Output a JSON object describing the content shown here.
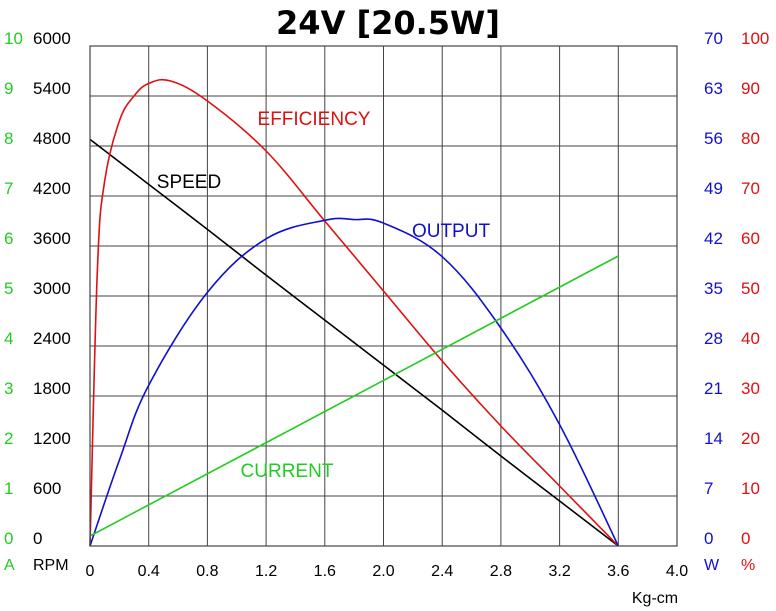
{
  "chart_data": {
    "type": "line",
    "title": "24V [20.5W]",
    "xlabel": "Kg-cm",
    "xlim": [
      0,
      4.0
    ],
    "x_ticks": [
      "0",
      "0.4",
      "0.8",
      "1.2",
      "1.6",
      "2.0",
      "2.4",
      "2.8",
      "3.2",
      "3.6",
      "4.0"
    ],
    "grid": true,
    "axes": {
      "current": {
        "unit": "A",
        "range": [
          0,
          10
        ],
        "ticks": [
          "0",
          "1",
          "2",
          "3",
          "4",
          "5",
          "6",
          "7",
          "8",
          "9",
          "10"
        ],
        "color": "#22cc22"
      },
      "speed": {
        "unit": "RPM",
        "range": [
          0,
          6000
        ],
        "ticks": [
          "0",
          "600",
          "1200",
          "1800",
          "2400",
          "3000",
          "3600",
          "4200",
          "4800",
          "5400",
          "6000"
        ],
        "color": "#000000"
      },
      "output": {
        "unit": "W",
        "range": [
          0,
          70
        ],
        "ticks": [
          "0",
          "7",
          "14",
          "21",
          "28",
          "35",
          "42",
          "49",
          "56",
          "63",
          "70"
        ],
        "color": "#1010cc"
      },
      "efficiency": {
        "unit": "%",
        "range": [
          0,
          100
        ],
        "ticks": [
          "0",
          "10",
          "20",
          "30",
          "40",
          "50",
          "60",
          "70",
          "80",
          "90",
          "100"
        ],
        "color": "#dd1111"
      }
    },
    "series": [
      {
        "name": "SPEED",
        "axis": "speed",
        "color": "#000000",
        "x": [
          0,
          0.4,
          0.8,
          1.2,
          1.6,
          2.0,
          2.4,
          2.8,
          3.2,
          3.6
        ],
        "y": [
          4880,
          4340,
          3800,
          3250,
          2710,
          2170,
          1630,
          1080,
          540,
          0
        ]
      },
      {
        "name": "EFFICIENCY",
        "axis": "efficiency",
        "color": "#dd1111",
        "x": [
          0,
          0.05,
          0.1,
          0.2,
          0.3,
          0.4,
          0.55,
          0.8,
          1.2,
          1.6,
          2.0,
          2.4,
          2.8,
          3.2,
          3.6
        ],
        "y": [
          0,
          55,
          73,
          85,
          90,
          92.5,
          93,
          89,
          79,
          65,
          51,
          37,
          24,
          12,
          0
        ]
      },
      {
        "name": "OUTPUT",
        "axis": "output",
        "color": "#1010cc",
        "x": [
          0,
          0.2,
          0.4,
          0.8,
          1.2,
          1.6,
          1.8,
          2.0,
          2.4,
          2.8,
          3.2,
          3.6
        ],
        "y": [
          0,
          12,
          22.5,
          35.5,
          43,
          45.6,
          45.7,
          45.2,
          40.5,
          30.5,
          17,
          0
        ]
      },
      {
        "name": "CURRENT",
        "axis": "current",
        "color": "#22cc22",
        "x": [
          0,
          3.6
        ],
        "y": [
          0.2,
          5.8
        ]
      }
    ]
  }
}
